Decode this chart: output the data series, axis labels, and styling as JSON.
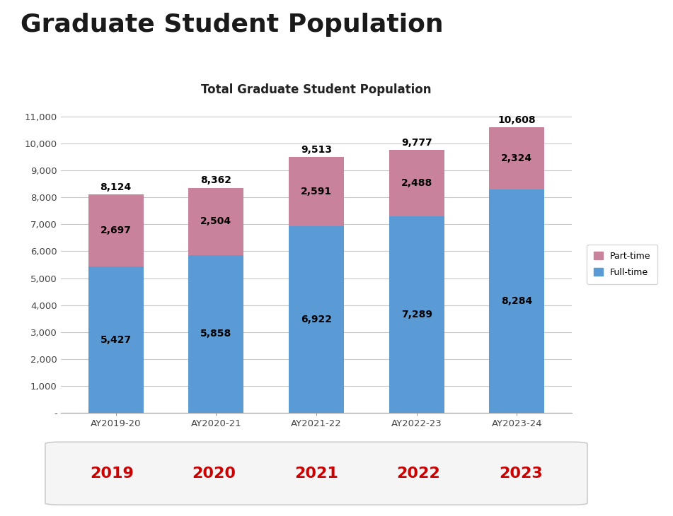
{
  "title": "Graduate Student Population",
  "chart_title": "Total Graduate Student Population",
  "categories": [
    "AY2019-20",
    "AY2020-21",
    "AY2021-22",
    "AY2022-23",
    "AY2023-24"
  ],
  "bottom_labels": [
    "2019",
    "2020",
    "2021",
    "2022",
    "2023"
  ],
  "fulltime": [
    5427,
    5858,
    6922,
    7289,
    8284
  ],
  "parttime": [
    2697,
    2504,
    2591,
    2488,
    2324
  ],
  "totals": [
    8124,
    8362,
    9513,
    9777,
    10608
  ],
  "fulltime_color": "#5B9BD5",
  "parttime_color": "#C9829C",
  "ylim": [
    0,
    11500
  ],
  "yticks": [
    0,
    1000,
    2000,
    3000,
    4000,
    5000,
    6000,
    7000,
    8000,
    9000,
    10000,
    11000
  ],
  "ytick_labels": [
    "-",
    "1,000",
    "2,000",
    "3,000",
    "4,000",
    "5,000",
    "6,000",
    "7,000",
    "8,000",
    "9,000",
    "10,000",
    "11,000"
  ],
  "legend_parttime": "Part-time",
  "legend_fulltime": "Full-time",
  "bottom_label_color": "#CC0000",
  "grid_color": "#C8C8C8",
  "background_color": "#FFFFFF",
  "bar_width": 0.55,
  "title_fontsize": 26,
  "chart_title_fontsize": 12,
  "label_fontsize": 10,
  "bottom_box_bg": "#F5F5F5",
  "bottom_box_edge": "#CCCCCC"
}
